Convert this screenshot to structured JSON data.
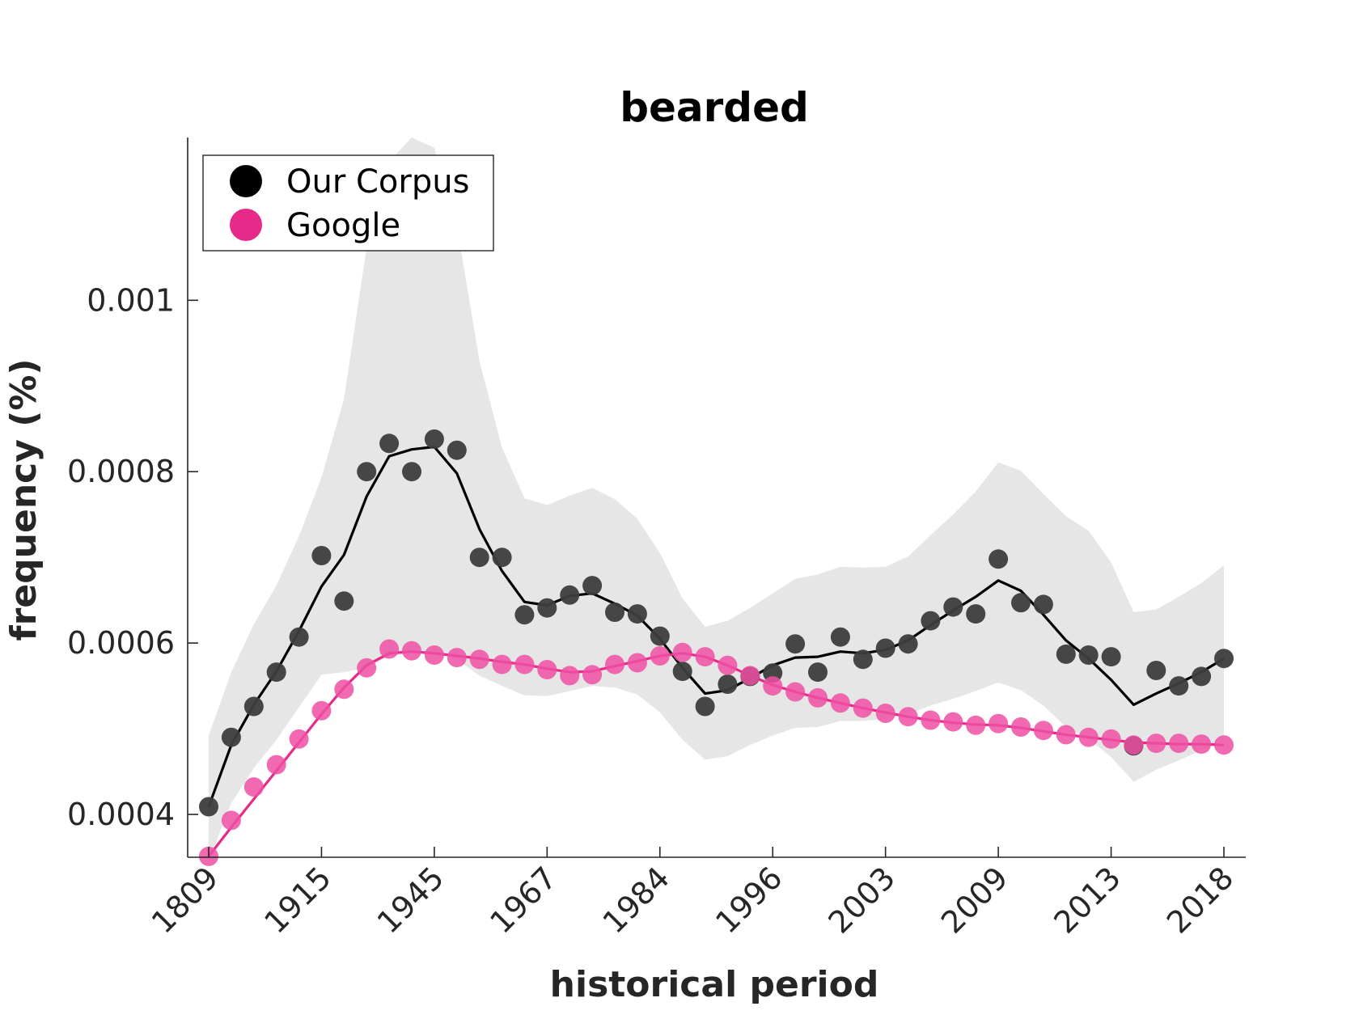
{
  "chart_data": {
    "type": "line",
    "title": "bearded",
    "xlabel": "historical period",
    "ylabel": "frequency (%)",
    "x_tick_labels": [
      "1809",
      "1915",
      "1945",
      "1967",
      "1984",
      "1996",
      "2003",
      "2009",
      "2013",
      "2018"
    ],
    "y_ticks": [
      0.0004,
      0.0006,
      0.0008,
      0.001
    ],
    "y_tick_labels": [
      "0.0004",
      "0.0006",
      "0.0008",
      "0.001"
    ],
    "ylim": [
      0.00035,
      0.00119
    ],
    "grid": false,
    "legend_position": "top-left",
    "periods": [
      "1809",
      "",
      "",
      "",
      "",
      "1915",
      "",
      "",
      "",
      "",
      "1945",
      "",
      "",
      "",
      "",
      "1967",
      "",
      "",
      "",
      "",
      "1984",
      "",
      "",
      "",
      "",
      "1996",
      "",
      "",
      "",
      "",
      "2003",
      "",
      "",
      "",
      "",
      "2009",
      "",
      "",
      "",
      "",
      "2013",
      "",
      "",
      "",
      "",
      "2018"
    ],
    "series": [
      {
        "name": "Our Corpus",
        "color": "#000000",
        "marker_color": "#3d3d3d",
        "points": [
          0.000409,
          0.00049,
          0.000526,
          0.000566,
          0.000607,
          0.000702,
          0.000649,
          0.0008,
          0.000833,
          0.0008,
          0.000838,
          0.000825,
          0.0007,
          0.0007,
          0.000633,
          0.000641,
          0.000656,
          0.000667,
          0.000636,
          0.000634,
          0.000608,
          0.000567,
          0.000526,
          0.000552,
          0.000561,
          0.000565,
          0.000599,
          0.000566,
          0.000607,
          0.000581,
          0.000594,
          0.000599,
          0.000626,
          0.000642,
          0.000634,
          0.000698,
          0.000647,
          0.000645,
          0.000587,
          0.000586,
          0.000584,
          0.00048,
          0.000568,
          0.00055,
          0.000561,
          0.000582
        ],
        "smoothed": [
          0.000409,
          0.000481,
          0.000528,
          0.000567,
          0.000614,
          0.000666,
          0.000703,
          0.000771,
          0.000818,
          0.000826,
          0.000829,
          0.000798,
          0.000733,
          0.000684,
          0.000648,
          0.000644,
          0.000655,
          0.000658,
          0.000646,
          0.000632,
          0.000605,
          0.000571,
          0.000541,
          0.000545,
          0.000559,
          0.000574,
          0.000583,
          0.000584,
          0.00059,
          0.000588,
          0.000592,
          0.000603,
          0.000621,
          0.000638,
          0.000654,
          0.000673,
          0.000661,
          0.000633,
          0.000603,
          0.000582,
          0.000557,
          0.000528,
          0.000541,
          0.000553,
          0.000566,
          0.000582
        ],
        "ci_upper": [
          0.000492,
          0.000566,
          0.000622,
          0.000667,
          0.000725,
          0.000793,
          0.000885,
          0.001062,
          0.001162,
          0.00119,
          0.001178,
          0.001087,
          0.000929,
          0.000828,
          0.000769,
          0.000761,
          0.000772,
          0.000781,
          0.000768,
          0.000745,
          0.000705,
          0.000652,
          0.000619,
          0.000626,
          0.000641,
          0.000658,
          0.000675,
          0.00068,
          0.000689,
          0.000688,
          0.000689,
          0.000701,
          0.000726,
          0.00075,
          0.000777,
          0.000811,
          0.000801,
          0.000774,
          0.000748,
          0.000731,
          0.000694,
          0.000636,
          0.000639,
          0.000654,
          0.00067,
          0.000691
        ],
        "ci_lower": [
          0.000346,
          0.000413,
          0.000454,
          0.000487,
          0.000525,
          0.000563,
          0.000566,
          0.000571,
          0.000585,
          0.000588,
          0.000589,
          0.000581,
          0.000562,
          0.00055,
          0.000539,
          0.000538,
          0.000544,
          0.00055,
          0.000548,
          0.00054,
          0.000519,
          0.000487,
          0.000464,
          0.000468,
          0.000481,
          0.000492,
          0.000501,
          0.000502,
          0.000509,
          0.000509,
          0.000511,
          0.000517,
          0.000527,
          0.000535,
          0.000544,
          0.000554,
          0.000545,
          0.000527,
          0.000502,
          0.000488,
          0.000467,
          0.000438,
          0.000452,
          0.000463,
          0.000475,
          0.000487
        ]
      },
      {
        "name": "Google",
        "color": "#e7298a",
        "marker_color": "#ee4fa3",
        "points": [
          0.000351,
          0.000393,
          0.000432,
          0.000458,
          0.000488,
          0.000521,
          0.000546,
          0.000571,
          0.000593,
          0.000591,
          0.000586,
          0.000583,
          0.000581,
          0.000575,
          0.000575,
          0.000569,
          0.000562,
          0.000563,
          0.000575,
          0.000577,
          0.000585,
          0.000589,
          0.000584,
          0.000574,
          0.000562,
          0.00055,
          0.000543,
          0.000536,
          0.00053,
          0.000524,
          0.000518,
          0.000514,
          0.00051,
          0.000508,
          0.000504,
          0.000506,
          0.000502,
          0.000498,
          0.000493,
          0.00049,
          0.000488,
          0.000481,
          0.000483,
          0.000483,
          0.000482,
          0.000481
        ],
        "smoothed": [
          0.000351,
          0.000385,
          0.000418,
          0.000451,
          0.000484,
          0.000517,
          0.000548,
          0.000574,
          0.000588,
          0.00059,
          0.000588,
          0.000585,
          0.000582,
          0.000578,
          0.000575,
          0.00057,
          0.000566,
          0.000567,
          0.000573,
          0.000579,
          0.000585,
          0.000588,
          0.000584,
          0.000574,
          0.000562,
          0.000551,
          0.000543,
          0.000536,
          0.00053,
          0.000524,
          0.000519,
          0.000514,
          0.00051,
          0.000507,
          0.000505,
          0.000504,
          0.000501,
          0.000497,
          0.000493,
          0.00049,
          0.000487,
          0.000484,
          0.000483,
          0.000482,
          0.000482,
          0.000481
        ]
      }
    ]
  }
}
